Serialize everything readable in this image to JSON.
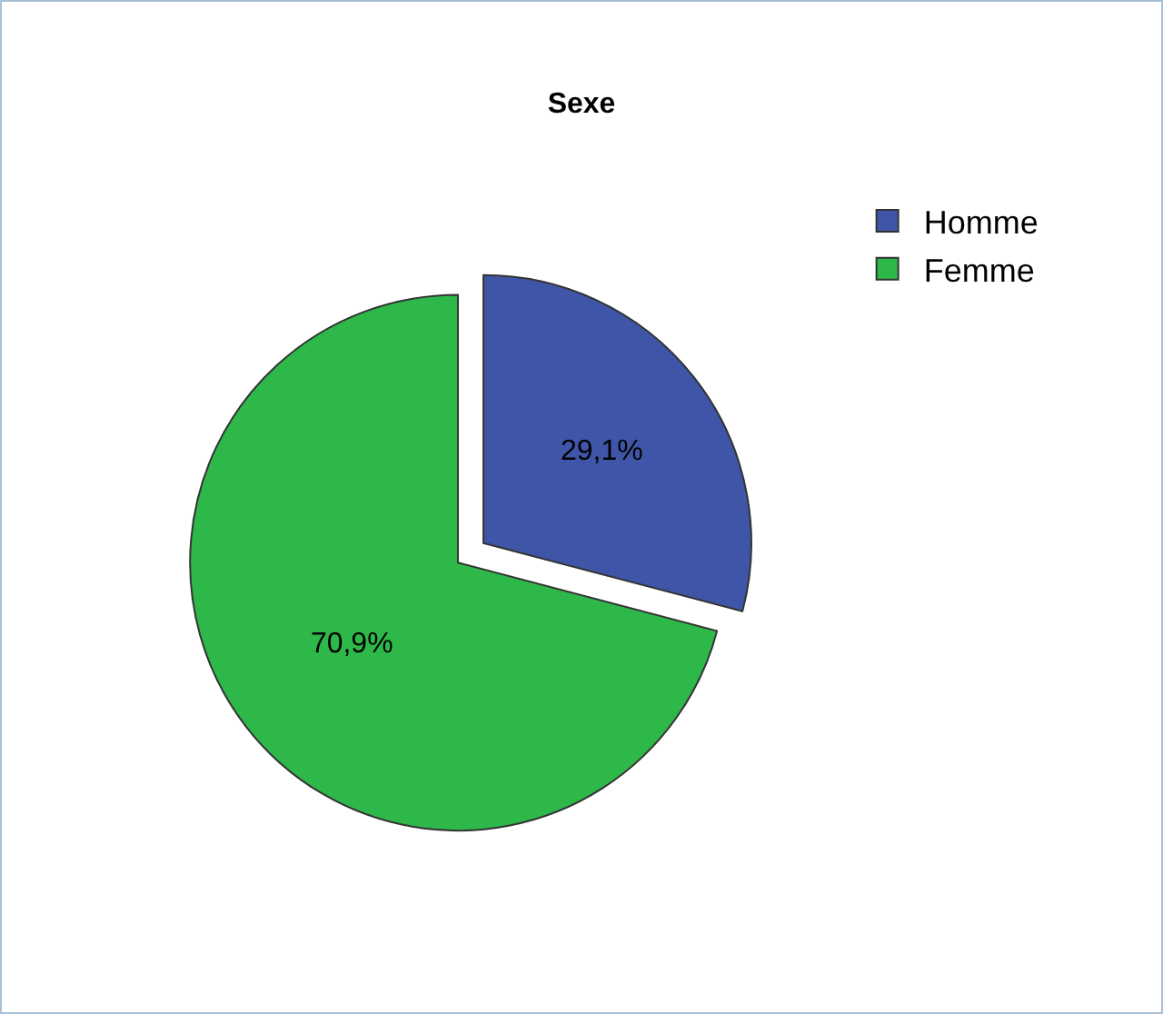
{
  "chart_data": {
    "type": "pie",
    "title": "Sexe",
    "categories": [
      "Homme",
      "Femme"
    ],
    "values": [
      29.1,
      70.9
    ],
    "value_labels": [
      "29,1%",
      "70,9%"
    ],
    "colors": [
      "#3f56a8",
      "#2eb84a"
    ],
    "legend": "top right"
  }
}
